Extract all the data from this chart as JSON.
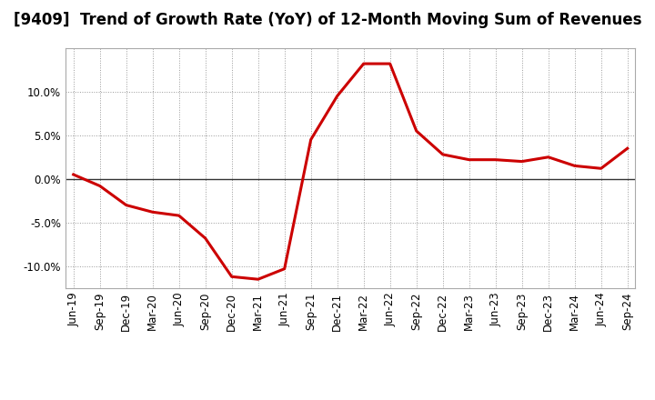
{
  "title": "[9409]  Trend of Growth Rate (YoY) of 12-Month Moving Sum of Revenues",
  "x_labels": [
    "Jun-19",
    "Sep-19",
    "Dec-19",
    "Mar-20",
    "Jun-20",
    "Sep-20",
    "Dec-20",
    "Mar-21",
    "Jun-21",
    "Sep-21",
    "Dec-21",
    "Mar-22",
    "Jun-22",
    "Sep-22",
    "Dec-22",
    "Mar-23",
    "Jun-23",
    "Sep-23",
    "Dec-23",
    "Mar-24",
    "Jun-24",
    "Sep-24"
  ],
  "y_values": [
    0.5,
    -0.8,
    -3.0,
    -3.8,
    -4.2,
    -6.8,
    -11.2,
    -11.5,
    -10.3,
    4.5,
    9.5,
    13.2,
    13.2,
    5.5,
    2.8,
    2.2,
    2.2,
    2.0,
    2.5,
    1.5,
    1.2,
    3.5
  ],
  "line_color": "#cc0000",
  "line_width": 2.2,
  "ylim": [
    -12.5,
    15.0
  ],
  "yticks": [
    -10.0,
    -5.0,
    0.0,
    5.0,
    10.0
  ],
  "bg_color": "#ffffff",
  "plot_bg_color": "#ffffff",
  "grid_color": "#999999",
  "title_fontsize": 12,
  "tick_fontsize": 8.5
}
